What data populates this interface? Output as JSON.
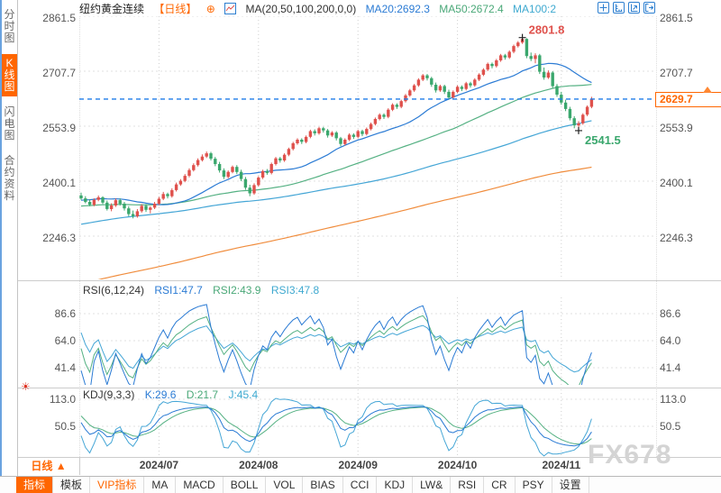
{
  "header": {
    "title": "纽约黄金连续",
    "period_tag": "【日线】",
    "add_symbol": "⊕",
    "ma_formula": "MA(20,50,100,200,0,0)",
    "ma20": "MA20:2692.3",
    "ma50": "MA50:2672.4",
    "ma100": "MA100:2",
    "toolbar_icons": [
      "crosshair-move-icon",
      "axis-left-icon",
      "axis-right-icon",
      "detach-icon"
    ]
  },
  "sidebar": {
    "items": [
      {
        "label": "分时图",
        "name": "time-chart",
        "active": false
      },
      {
        "label": "K线图",
        "name": "kline-chart",
        "active": true
      },
      {
        "label": "闪电图",
        "name": "flash-chart",
        "active": false
      },
      {
        "label": "合约资料",
        "name": "contract-info",
        "active": false
      }
    ]
  },
  "main_axis": {
    "labels": [
      "2861.5",
      "2707.7",
      "2553.9",
      "2400.1",
      "2246.3"
    ],
    "values": [
      2861.5,
      2707.7,
      2553.9,
      2400.1,
      2246.3
    ]
  },
  "price_tag": {
    "label": "2629.7",
    "value": 2629.7
  },
  "rsi": {
    "formula": "RSI(6,12,24)",
    "rsi1": "RSI1:47.7",
    "rsi2": "RSI2:43.9",
    "rsi3": "RSI3:47.8",
    "axis_labels": [
      "86.6",
      "64.0",
      "41.4"
    ],
    "axis_values": [
      86.6,
      64.0,
      41.4
    ]
  },
  "kdj": {
    "formula": "KDJ(9,3,3)",
    "k": "K:29.6",
    "d": "D:21.7",
    "j": "J:45.4",
    "axis_labels": [
      "113.0",
      "50.5"
    ],
    "axis_values": [
      113.0,
      50.5
    ]
  },
  "xaxis": {
    "period_label": "日线 ▲",
    "months": [
      {
        "label": "2024/07",
        "candle_index": 18
      },
      {
        "label": "2024/08",
        "candle_index": 41
      },
      {
        "label": "2024/09",
        "candle_index": 64
      },
      {
        "label": "2024/10",
        "candle_index": 87
      },
      {
        "label": "2024/11",
        "candle_index": 111
      }
    ]
  },
  "tabs": [
    {
      "label": "指标",
      "name": "indicator",
      "state": "active"
    },
    {
      "label": "模板",
      "name": "template",
      "state": "normal"
    },
    {
      "label": "VIP指标",
      "name": "vip-indicator",
      "state": "vip"
    },
    {
      "label": "MA",
      "name": "ma",
      "state": "normal"
    },
    {
      "label": "MACD",
      "name": "macd",
      "state": "normal"
    },
    {
      "label": "BOLL",
      "name": "boll",
      "state": "normal"
    },
    {
      "label": "VOL",
      "name": "vol",
      "state": "normal"
    },
    {
      "label": "BIAS",
      "name": "bias",
      "state": "normal"
    },
    {
      "label": "CCI",
      "name": "cci",
      "state": "normal"
    },
    {
      "label": "KDJ",
      "name": "kdj",
      "state": "normal"
    },
    {
      "label": "LW&",
      "name": "lwr",
      "state": "normal"
    },
    {
      "label": "RSI",
      "name": "rsi",
      "state": "normal"
    },
    {
      "label": "CR",
      "name": "cr",
      "state": "normal"
    },
    {
      "label": "PSY",
      "name": "psy",
      "state": "normal"
    },
    {
      "label": "设置",
      "name": "settings",
      "state": "normal"
    }
  ],
  "watermark": {
    "text": "FX678"
  },
  "colors": {
    "up": "#df514c",
    "down": "#3aa76d",
    "ma20": "#2b7bd4",
    "ma50": "#55b183",
    "ma100": "#45a6d6",
    "ma200": "#f08c3c",
    "current_line": "#1f7ce8",
    "accent": "#ff6600",
    "grid": "#e0e0e0",
    "month_grid": "#d0d0d0",
    "rsi1": "#2b7bd4",
    "rsi2": "#55b183",
    "rsi3": "#45a6d6",
    "kdj_k": "#2b7bd4",
    "kdj_d": "#55b183",
    "kdj_j": "#45a6d6",
    "marker_high": "#df514c",
    "marker_low": "#3aa76d"
  },
  "chart_data": {
    "type": "candlestick",
    "symbol": "纽约黄金连续",
    "period": "日线",
    "ma_periods": [
      20,
      50,
      100,
      200
    ],
    "y_axis": [
      2861.5,
      2707.7,
      2553.9,
      2400.1,
      2246.3
    ],
    "current_price": 2629.7,
    "high_marker": {
      "index": 102,
      "price": 2801.8,
      "label": "2801.8"
    },
    "low_marker": {
      "index": 115,
      "price": 2541.5,
      "label": "2541.5"
    },
    "candles": [
      [
        2360,
        2368,
        2348,
        2352
      ],
      [
        2352,
        2358,
        2338,
        2342
      ],
      [
        2342,
        2350,
        2330,
        2334
      ],
      [
        2334,
        2352,
        2330,
        2348
      ],
      [
        2348,
        2360,
        2344,
        2355
      ],
      [
        2355,
        2358,
        2336,
        2340
      ],
      [
        2340,
        2346,
        2318,
        2322
      ],
      [
        2322,
        2338,
        2316,
        2332
      ],
      [
        2332,
        2352,
        2328,
        2347
      ],
      [
        2347,
        2352,
        2332,
        2337
      ],
      [
        2337,
        2342,
        2318,
        2324
      ],
      [
        2324,
        2330,
        2302,
        2308
      ],
      [
        2308,
        2318,
        2296,
        2302
      ],
      [
        2302,
        2322,
        2298,
        2316
      ],
      [
        2316,
        2336,
        2312,
        2331
      ],
      [
        2331,
        2336,
        2314,
        2320
      ],
      [
        2320,
        2330,
        2310,
        2326
      ],
      [
        2326,
        2342,
        2322,
        2337
      ],
      [
        2337,
        2356,
        2333,
        2351
      ],
      [
        2351,
        2370,
        2347,
        2364
      ],
      [
        2364,
        2368,
        2352,
        2358
      ],
      [
        2358,
        2380,
        2354,
        2375
      ],
      [
        2375,
        2396,
        2371,
        2391
      ],
      [
        2391,
        2406,
        2387,
        2401
      ],
      [
        2401,
        2420,
        2397,
        2415
      ],
      [
        2415,
        2436,
        2411,
        2431
      ],
      [
        2431,
        2450,
        2427,
        2445
      ],
      [
        2445,
        2464,
        2441,
        2459
      ],
      [
        2459,
        2475,
        2455,
        2469
      ],
      [
        2469,
        2483,
        2465,
        2478
      ],
      [
        2478,
        2482,
        2458,
        2463
      ],
      [
        2463,
        2468,
        2442,
        2448
      ],
      [
        2448,
        2454,
        2424,
        2430
      ],
      [
        2430,
        2436,
        2406,
        2412
      ],
      [
        2412,
        2430,
        2408,
        2426
      ],
      [
        2426,
        2444,
        2422,
        2440
      ],
      [
        2440,
        2445,
        2420,
        2426
      ],
      [
        2426,
        2432,
        2400,
        2406
      ],
      [
        2406,
        2412,
        2376,
        2382
      ],
      [
        2382,
        2390,
        2358,
        2366
      ],
      [
        2366,
        2394,
        2362,
        2389
      ],
      [
        2389,
        2414,
        2385,
        2410
      ],
      [
        2410,
        2432,
        2406,
        2428
      ],
      [
        2428,
        2434,
        2418,
        2423
      ],
      [
        2423,
        2452,
        2419,
        2448
      ],
      [
        2448,
        2468,
        2444,
        2464
      ],
      [
        2464,
        2468,
        2452,
        2458
      ],
      [
        2458,
        2478,
        2454,
        2474
      ],
      [
        2474,
        2494,
        2470,
        2490
      ],
      [
        2490,
        2510,
        2486,
        2506
      ],
      [
        2506,
        2520,
        2502,
        2516
      ],
      [
        2516,
        2520,
        2504,
        2510
      ],
      [
        2510,
        2528,
        2506,
        2524
      ],
      [
        2524,
        2544,
        2520,
        2540
      ],
      [
        2540,
        2545,
        2528,
        2534
      ],
      [
        2534,
        2552,
        2530,
        2548
      ],
      [
        2548,
        2552,
        2536,
        2542
      ],
      [
        2542,
        2546,
        2522,
        2528
      ],
      [
        2528,
        2540,
        2524,
        2536
      ],
      [
        2536,
        2540,
        2514,
        2520
      ],
      [
        2520,
        2524,
        2498,
        2504
      ],
      [
        2504,
        2520,
        2500,
        2516
      ],
      [
        2516,
        2534,
        2512,
        2530
      ],
      [
        2530,
        2534,
        2518,
        2524
      ],
      [
        2524,
        2544,
        2520,
        2540
      ],
      [
        2540,
        2544,
        2526,
        2532
      ],
      [
        2532,
        2550,
        2528,
        2546
      ],
      [
        2546,
        2564,
        2542,
        2560
      ],
      [
        2560,
        2578,
        2556,
        2574
      ],
      [
        2574,
        2590,
        2570,
        2586
      ],
      [
        2586,
        2590,
        2574,
        2580
      ],
      [
        2580,
        2604,
        2576,
        2600
      ],
      [
        2600,
        2618,
        2596,
        2614
      ],
      [
        2614,
        2618,
        2602,
        2608
      ],
      [
        2608,
        2628,
        2604,
        2624
      ],
      [
        2624,
        2644,
        2620,
        2640
      ],
      [
        2640,
        2658,
        2636,
        2654
      ],
      [
        2654,
        2672,
        2650,
        2668
      ],
      [
        2668,
        2688,
        2664,
        2684
      ],
      [
        2684,
        2700,
        2680,
        2696
      ],
      [
        2696,
        2700,
        2682,
        2688
      ],
      [
        2688,
        2692,
        2664,
        2670
      ],
      [
        2670,
        2676,
        2648,
        2654
      ],
      [
        2654,
        2670,
        2650,
        2666
      ],
      [
        2666,
        2670,
        2644,
        2650
      ],
      [
        2650,
        2656,
        2628,
        2634
      ],
      [
        2634,
        2654,
        2630,
        2650
      ],
      [
        2650,
        2668,
        2646,
        2664
      ],
      [
        2664,
        2668,
        2652,
        2658
      ],
      [
        2658,
        2678,
        2654,
        2674
      ],
      [
        2674,
        2678,
        2662,
        2668
      ],
      [
        2668,
        2688,
        2664,
        2684
      ],
      [
        2684,
        2702,
        2680,
        2698
      ],
      [
        2698,
        2716,
        2694,
        2712
      ],
      [
        2712,
        2732,
        2708,
        2728
      ],
      [
        2728,
        2732,
        2716,
        2722
      ],
      [
        2722,
        2742,
        2718,
        2738
      ],
      [
        2738,
        2756,
        2734,
        2752
      ],
      [
        2752,
        2756,
        2740,
        2746
      ],
      [
        2746,
        2766,
        2742,
        2762
      ],
      [
        2762,
        2782,
        2758,
        2778
      ],
      [
        2778,
        2792,
        2774,
        2788
      ],
      [
        2788,
        2801.8,
        2784,
        2798
      ],
      [
        2798,
        2800,
        2744,
        2750
      ],
      [
        2750,
        2760,
        2736,
        2742
      ],
      [
        2742,
        2758,
        2730,
        2752
      ],
      [
        2752,
        2756,
        2700,
        2706
      ],
      [
        2706,
        2718,
        2684,
        2690
      ],
      [
        2690,
        2710,
        2686,
        2704
      ],
      [
        2704,
        2708,
        2660,
        2666
      ],
      [
        2666,
        2672,
        2636,
        2642
      ],
      [
        2642,
        2650,
        2614,
        2620
      ],
      [
        2620,
        2628,
        2596,
        2602
      ],
      [
        2602,
        2608,
        2570,
        2576
      ],
      [
        2576,
        2582,
        2548,
        2556
      ],
      [
        2556,
        2568,
        2541.5,
        2562
      ],
      [
        2562,
        2590,
        2558,
        2586
      ],
      [
        2586,
        2612,
        2582,
        2608
      ],
      [
        2608,
        2636,
        2604,
        2629.7
      ]
    ]
  }
}
